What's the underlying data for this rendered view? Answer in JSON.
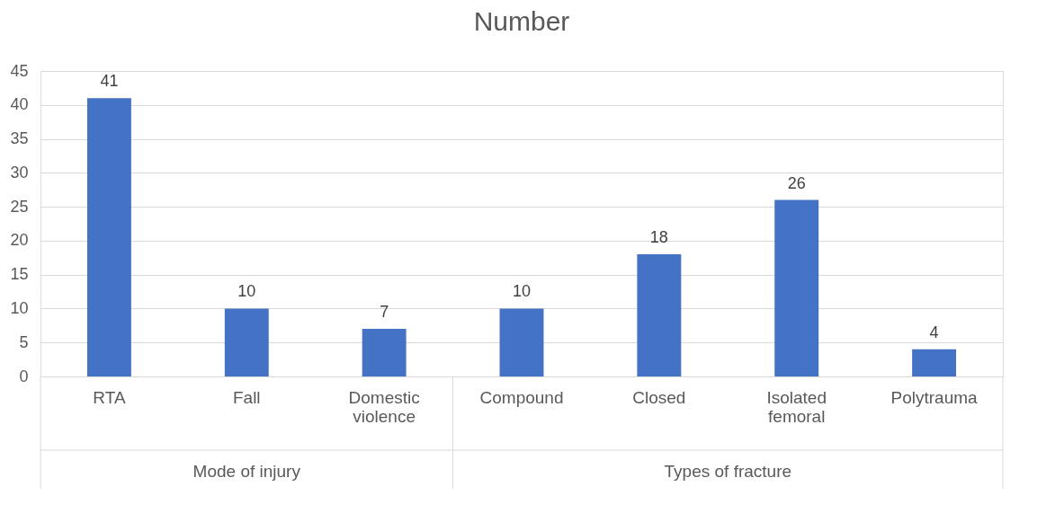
{
  "chart_data": {
    "type": "bar",
    "title": "Number",
    "categories": [
      "RTA",
      "Fall",
      "Domestic violence",
      "Compound",
      "Closed",
      "Isolated femoral",
      "Polytrauma"
    ],
    "values": [
      41,
      10,
      7,
      10,
      18,
      26,
      4
    ],
    "color": "#4472c4",
    "ylim": [
      0,
      45
    ],
    "yticks": [
      0,
      5,
      10,
      15,
      20,
      25,
      30,
      35,
      40,
      45
    ],
    "grid": "y",
    "data_labels": true,
    "annotations": [
      "Mode of injury",
      "Types of fracture"
    ]
  }
}
